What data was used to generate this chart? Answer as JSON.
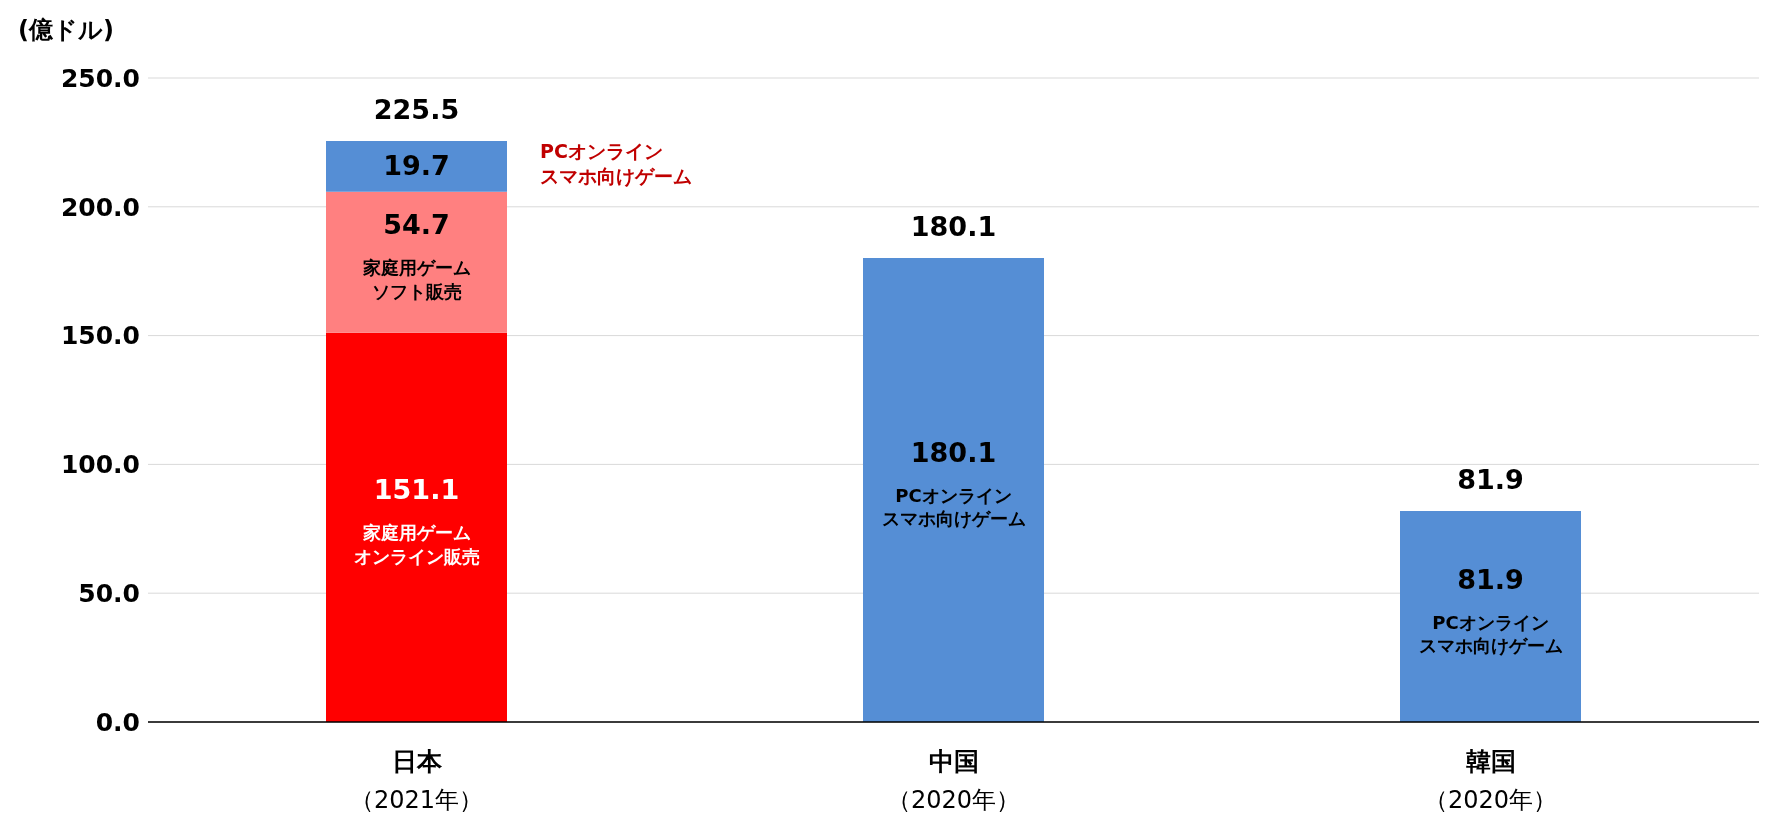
{
  "chart_data": {
    "type": "bar",
    "stacked": true,
    "ylabel": "(億ドル)",
    "categories": [
      "日本（2021年）",
      "中国（2020年）",
      "韓国（2020年）"
    ],
    "series": [
      {
        "name": "家庭用ゲームオンライン販売",
        "color": "#ff0000",
        "values": [
          151.1,
          null,
          null
        ]
      },
      {
        "name": "家庭用ゲームソフト販売",
        "color": "#ff8080",
        "values": [
          54.7,
          null,
          null
        ]
      },
      {
        "name": "PCオンラインスマホ向けゲーム",
        "color": "#558ed5",
        "values": [
          19.7,
          180.1,
          81.9
        ]
      }
    ],
    "totals": [
      "225.5",
      "180.1",
      "81.9"
    ],
    "data_labels": true,
    "annotations": [
      "PCオンラインスマホ向けゲーム"
    ],
    "ylim": [
      0,
      250
    ],
    "yticks": [
      {
        "value": 0,
        "label": "0.0"
      },
      {
        "value": 50,
        "label": "50.0"
      },
      {
        "value": 100,
        "label": "100.0"
      },
      {
        "value": 150,
        "label": "150.0"
      },
      {
        "value": 200,
        "label": "200.0"
      },
      {
        "value": 250,
        "label": "250.0"
      }
    ],
    "grid": "y",
    "legend": false
  }
}
